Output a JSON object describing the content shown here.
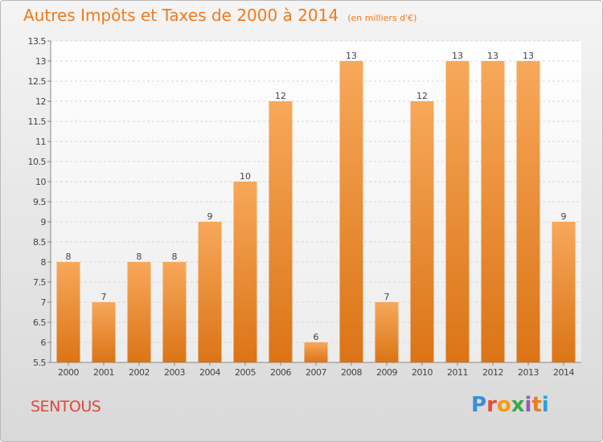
{
  "header": {
    "title": "Autres Impôts et Taxes de 2000 à 2014",
    "unit": "(en milliers d'€)"
  },
  "footer": {
    "commune": "SENTOUS",
    "logo": "Proxiti",
    "logo_colors": [
      "#3a8fd8",
      "#e74c3c",
      "#f39c12",
      "#3aa84a",
      "#9b59b6",
      "#e67e22",
      "#2aa1d6"
    ]
  },
  "colors": {
    "accent": "#f07a1c",
    "bar_light": "#f7a85a",
    "bar_dark": "#db7416",
    "commune": "#e0473c"
  },
  "chart_data": {
    "type": "bar",
    "title": "Autres Impôts et Taxes de 2000 à 2014",
    "categories": [
      "2000",
      "2001",
      "2002",
      "2003",
      "2004",
      "2005",
      "2006",
      "2007",
      "2008",
      "2009",
      "2010",
      "2011",
      "2012",
      "2013",
      "2014"
    ],
    "values": [
      8,
      7,
      8,
      8,
      9,
      10,
      12,
      6,
      13,
      7,
      12,
      13,
      13,
      13,
      9
    ],
    "value_labels": [
      "8",
      "7",
      "8",
      "8",
      "9",
      "10",
      "12",
      "6",
      "13",
      "7",
      "12",
      "13",
      "13",
      "13",
      "9"
    ],
    "ylim": [
      5.5,
      13.5
    ],
    "yticks": [
      "5.5",
      "6",
      "6.5",
      "7",
      "7.5",
      "8",
      "8.5",
      "9",
      "9.5",
      "10",
      "10.5",
      "11",
      "11.5",
      "12",
      "12.5",
      "13",
      "13.5"
    ],
    "grid": true,
    "legend": "none"
  }
}
